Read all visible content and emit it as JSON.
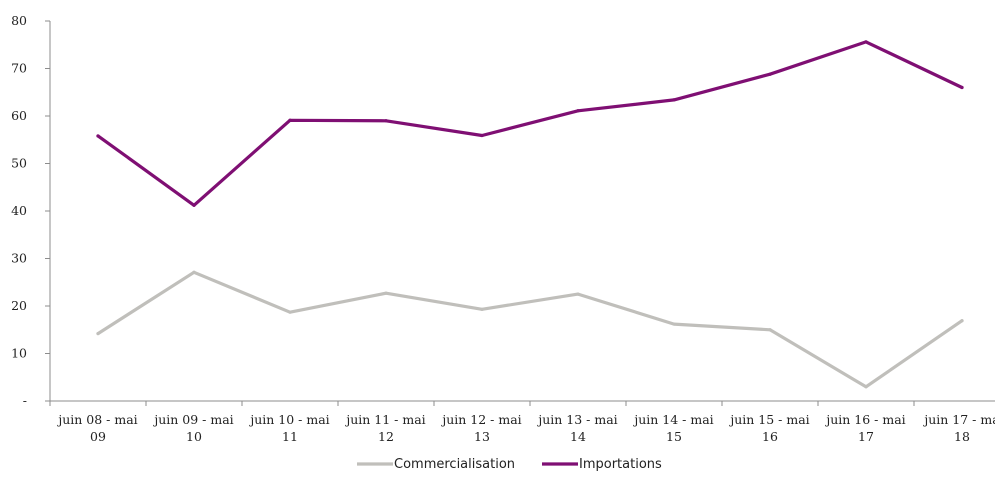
{
  "chart_data": {
    "type": "line",
    "categories": [
      [
        "juin 08 - mai",
        "09"
      ],
      [
        "juin 09 - mai",
        "10"
      ],
      [
        "juin 10 - mai",
        "11"
      ],
      [
        "juin 11 - mai",
        "12"
      ],
      [
        "juin 12 - mai",
        "13"
      ],
      [
        "juin 13 - mai",
        "14"
      ],
      [
        "juin 14 - mai",
        "15"
      ],
      [
        "juin 15 - mai",
        "16"
      ],
      [
        "juin 16 - mai",
        "17"
      ],
      [
        "juin 17 - ma",
        "18"
      ]
    ],
    "series": [
      {
        "name": "Commercialisation",
        "color": "#c0bfbb",
        "values": [
          14.2,
          27.1,
          18.7,
          22.7,
          19.3,
          22.5,
          16.2,
          15.0,
          3.0,
          16.9
        ]
      },
      {
        "name": "Importations",
        "color": "#7f0f73",
        "values": [
          55.8,
          41.2,
          59.1,
          59.0,
          55.9,
          61.1,
          63.4,
          68.8,
          75.6,
          66.0
        ]
      }
    ],
    "y_ticks": [
      "-",
      "10",
      "20",
      "30",
      "40",
      "50",
      "60",
      "70",
      "80"
    ],
    "ylim": [
      0,
      80
    ],
    "grid": false,
    "legend_position": "bottom"
  }
}
